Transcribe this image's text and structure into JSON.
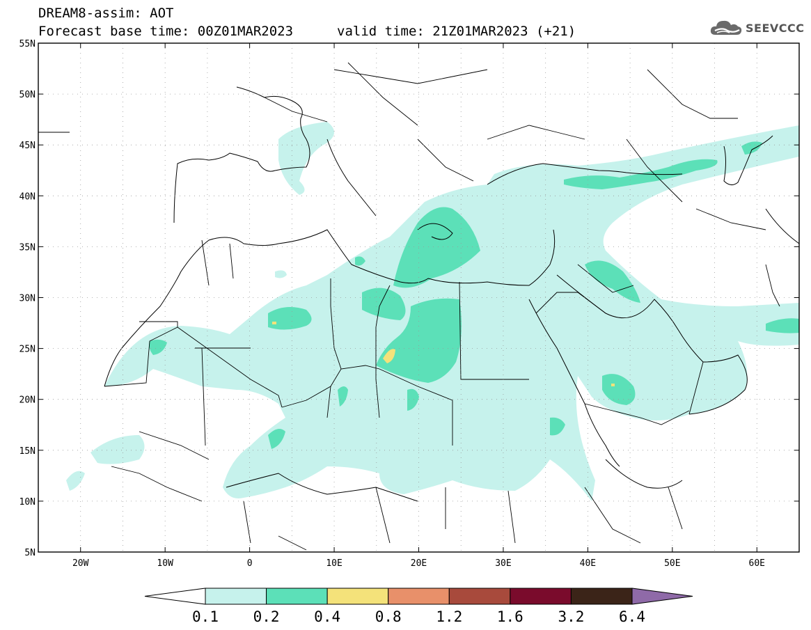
{
  "header": {
    "title_line1": "DREAM8-assim: AOT",
    "title_line2": "Forecast base time: 00Z01MAR2023",
    "valid_time": "valid time: 21Z01MAR2023 (+21)",
    "logo_text": "SEEVCCC",
    "logo_icon": "cloud-icon"
  },
  "map": {
    "lon_range": [
      -25,
      65
    ],
    "lat_range": [
      5,
      55
    ],
    "lat_labels": [
      "55N",
      "50N",
      "45N",
      "40N",
      "35N",
      "30N",
      "25N",
      "20N",
      "15N",
      "10N",
      "5N"
    ],
    "lon_labels": [
      "20W",
      "10W",
      "0",
      "10E",
      "20E",
      "30E",
      "40E",
      "50E",
      "60E"
    ],
    "gridlines": "dotted"
  },
  "colorbar": {
    "levels": [
      "0.1",
      "0.2",
      "0.4",
      "0.8",
      "1.2",
      "1.6",
      "3.2",
      "6.4"
    ],
    "colors": [
      "#ffffff",
      "#c6f2ec",
      "#5ce0b8",
      "#f4e27a",
      "#e8906a",
      "#a84a3c",
      "#7a0b2c",
      "#3b2418",
      "#8f6aa8"
    ]
  }
}
